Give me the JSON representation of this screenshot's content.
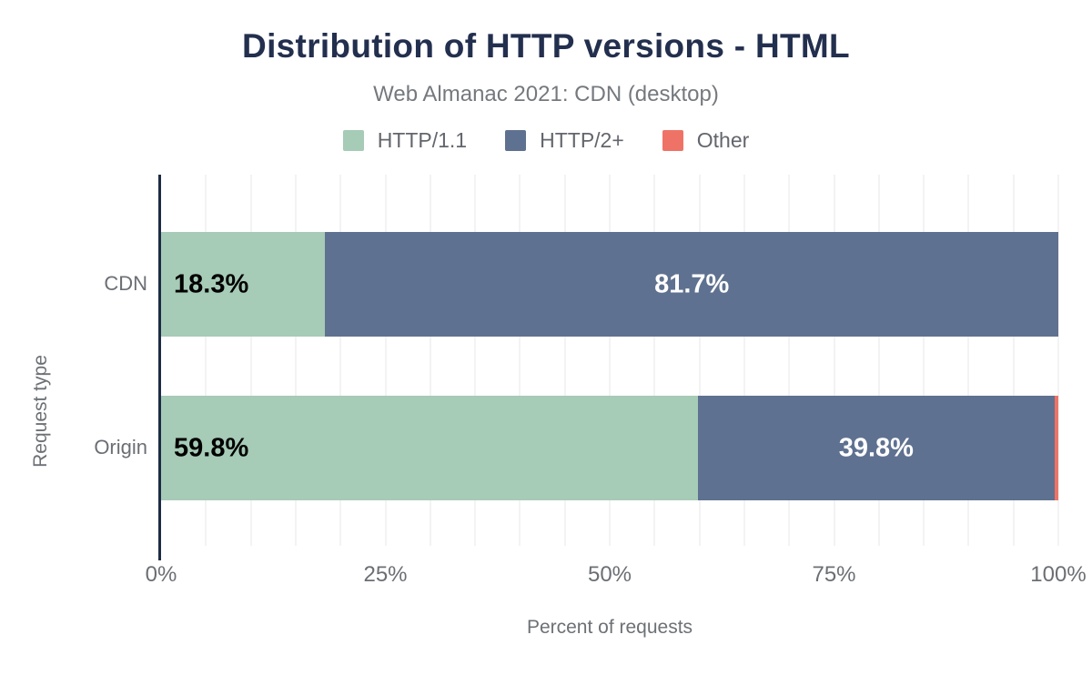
{
  "chart_data": {
    "type": "bar",
    "orientation": "horizontal",
    "stacked": true,
    "title": "Distribution of HTTP versions - HTML",
    "subtitle": "Web Almanac 2021: CDN (desktop)",
    "categories": [
      "CDN",
      "Origin"
    ],
    "series": [
      {
        "name": "HTTP/1.1",
        "color": "#a6cbb6",
        "values": [
          18.3,
          59.8
        ],
        "data_labels": [
          "18.3%",
          "59.8%"
        ],
        "label_color": "#000000",
        "label_align": "left"
      },
      {
        "name": "HTTP/2+",
        "color": "#5f7190",
        "values": [
          81.7,
          39.8
        ],
        "data_labels": [
          "81.7%",
          "39.8%"
        ],
        "label_color": "#ffffff",
        "label_align": "center"
      },
      {
        "name": "Other",
        "color": "#ee7366",
        "values": [
          0.0,
          0.4
        ],
        "data_labels": [
          "",
          ""
        ],
        "label_color": "#ffffff",
        "label_align": "center"
      }
    ],
    "x_axis": {
      "title": "Percent of requests",
      "ticks": [
        "0%",
        "25%",
        "50%",
        "75%",
        "100%"
      ],
      "range": [
        0,
        100
      ],
      "grid_interval": 5
    },
    "y_axis": {
      "title": "Request type",
      "ticks": [
        "CDN",
        "Origin"
      ]
    },
    "legend_position": "top",
    "grid": "vertical-only",
    "colors": {
      "title": "#232f4e",
      "subtitle": "#75797e",
      "axis_title": "#6d7175",
      "tick_label": "#6b6f74",
      "legend_label": "#63666c",
      "axis_line": "#1d2c44",
      "gridline": "#f3f3f3",
      "background": "#ffffff"
    }
  }
}
